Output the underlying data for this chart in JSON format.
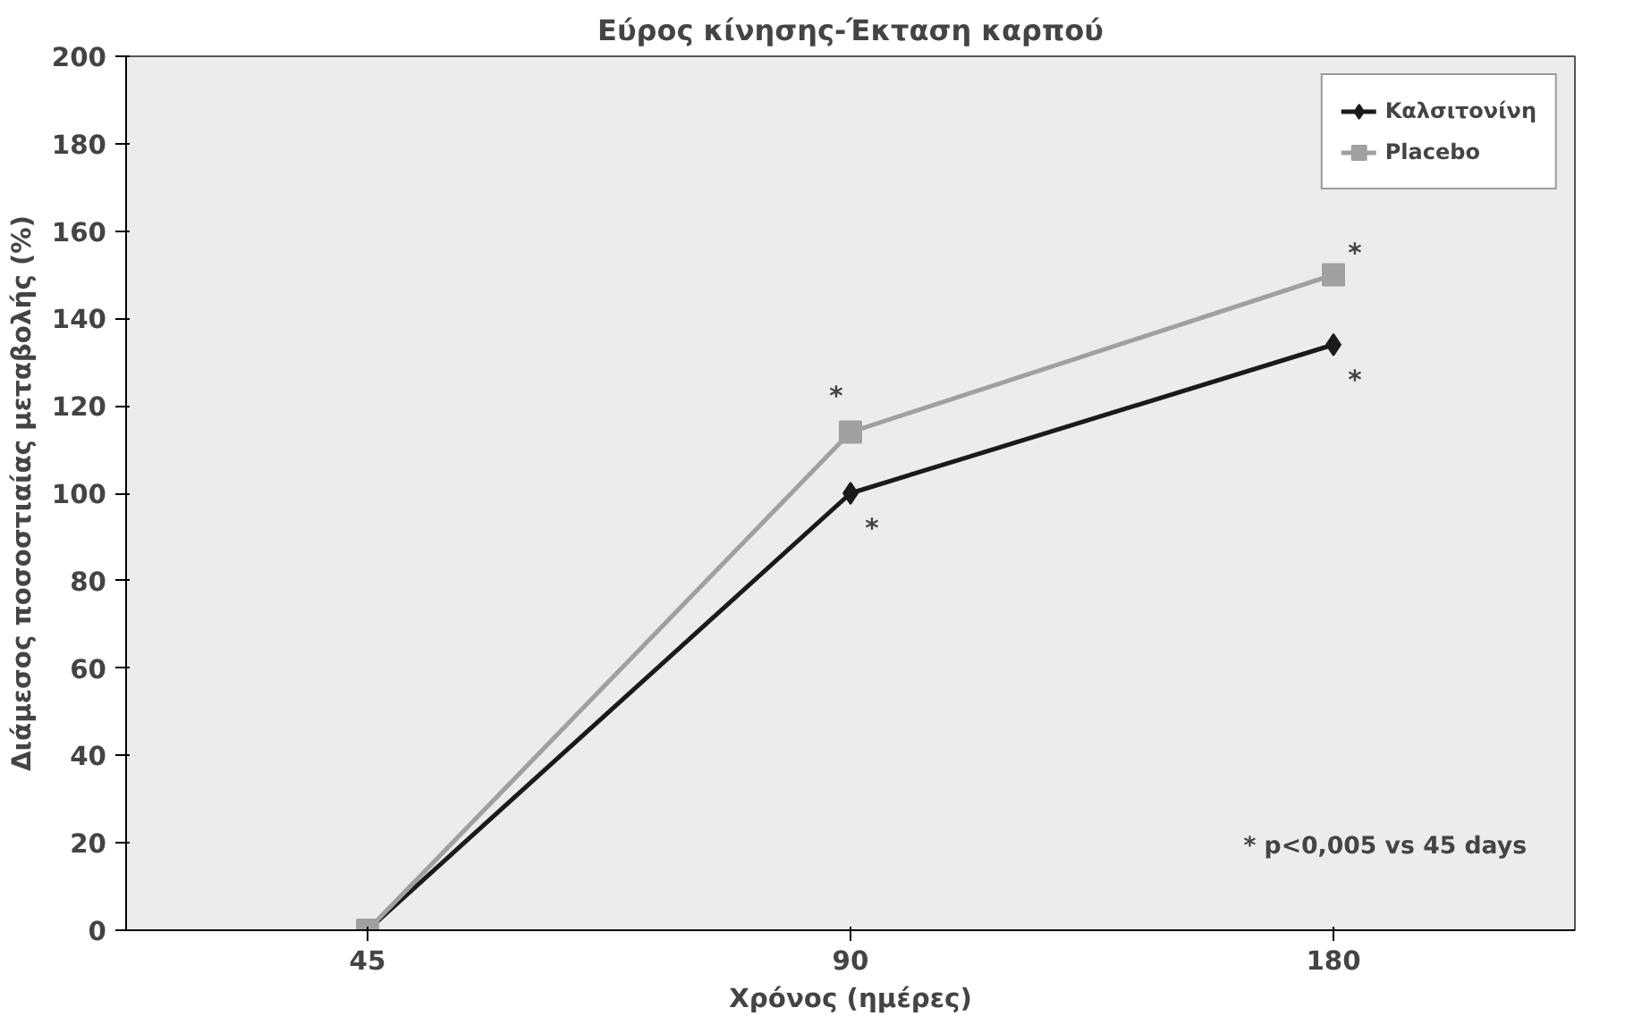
{
  "chart_data": {
    "type": "line",
    "title": "Εύρος κίνησης-Έκταση καρπού",
    "xlabel": "Χρόνος (ημέρες)",
    "ylabel": "Διάμεσος ποσοστιαίας μεταβολής (%)",
    "categories": [
      "45",
      "90",
      "180"
    ],
    "series": [
      {
        "name": "Καλσιτονίνη",
        "color": "#1a1a1a",
        "marker": "diamond",
        "values": [
          0,
          100,
          134
        ]
      },
      {
        "name": "Placebo",
        "color": "#a0a0a0",
        "marker": "square",
        "values": [
          0,
          114,
          150
        ]
      }
    ],
    "ylim": [
      0,
      200
    ],
    "yticks": [
      0,
      20,
      40,
      60,
      80,
      100,
      120,
      140,
      160,
      180,
      200
    ],
    "grid": false,
    "legend": "top right",
    "line_style": "solid",
    "annotations": [
      {
        "text": "*",
        "x": "90",
        "y": 114
      },
      {
        "text": "*",
        "x": "90",
        "y": 100
      },
      {
        "text": "*",
        "x": "180",
        "y": 150
      },
      {
        "text": "*",
        "x": "180",
        "y": 134
      },
      "* p<0,005 vs 45 days"
    ]
  }
}
